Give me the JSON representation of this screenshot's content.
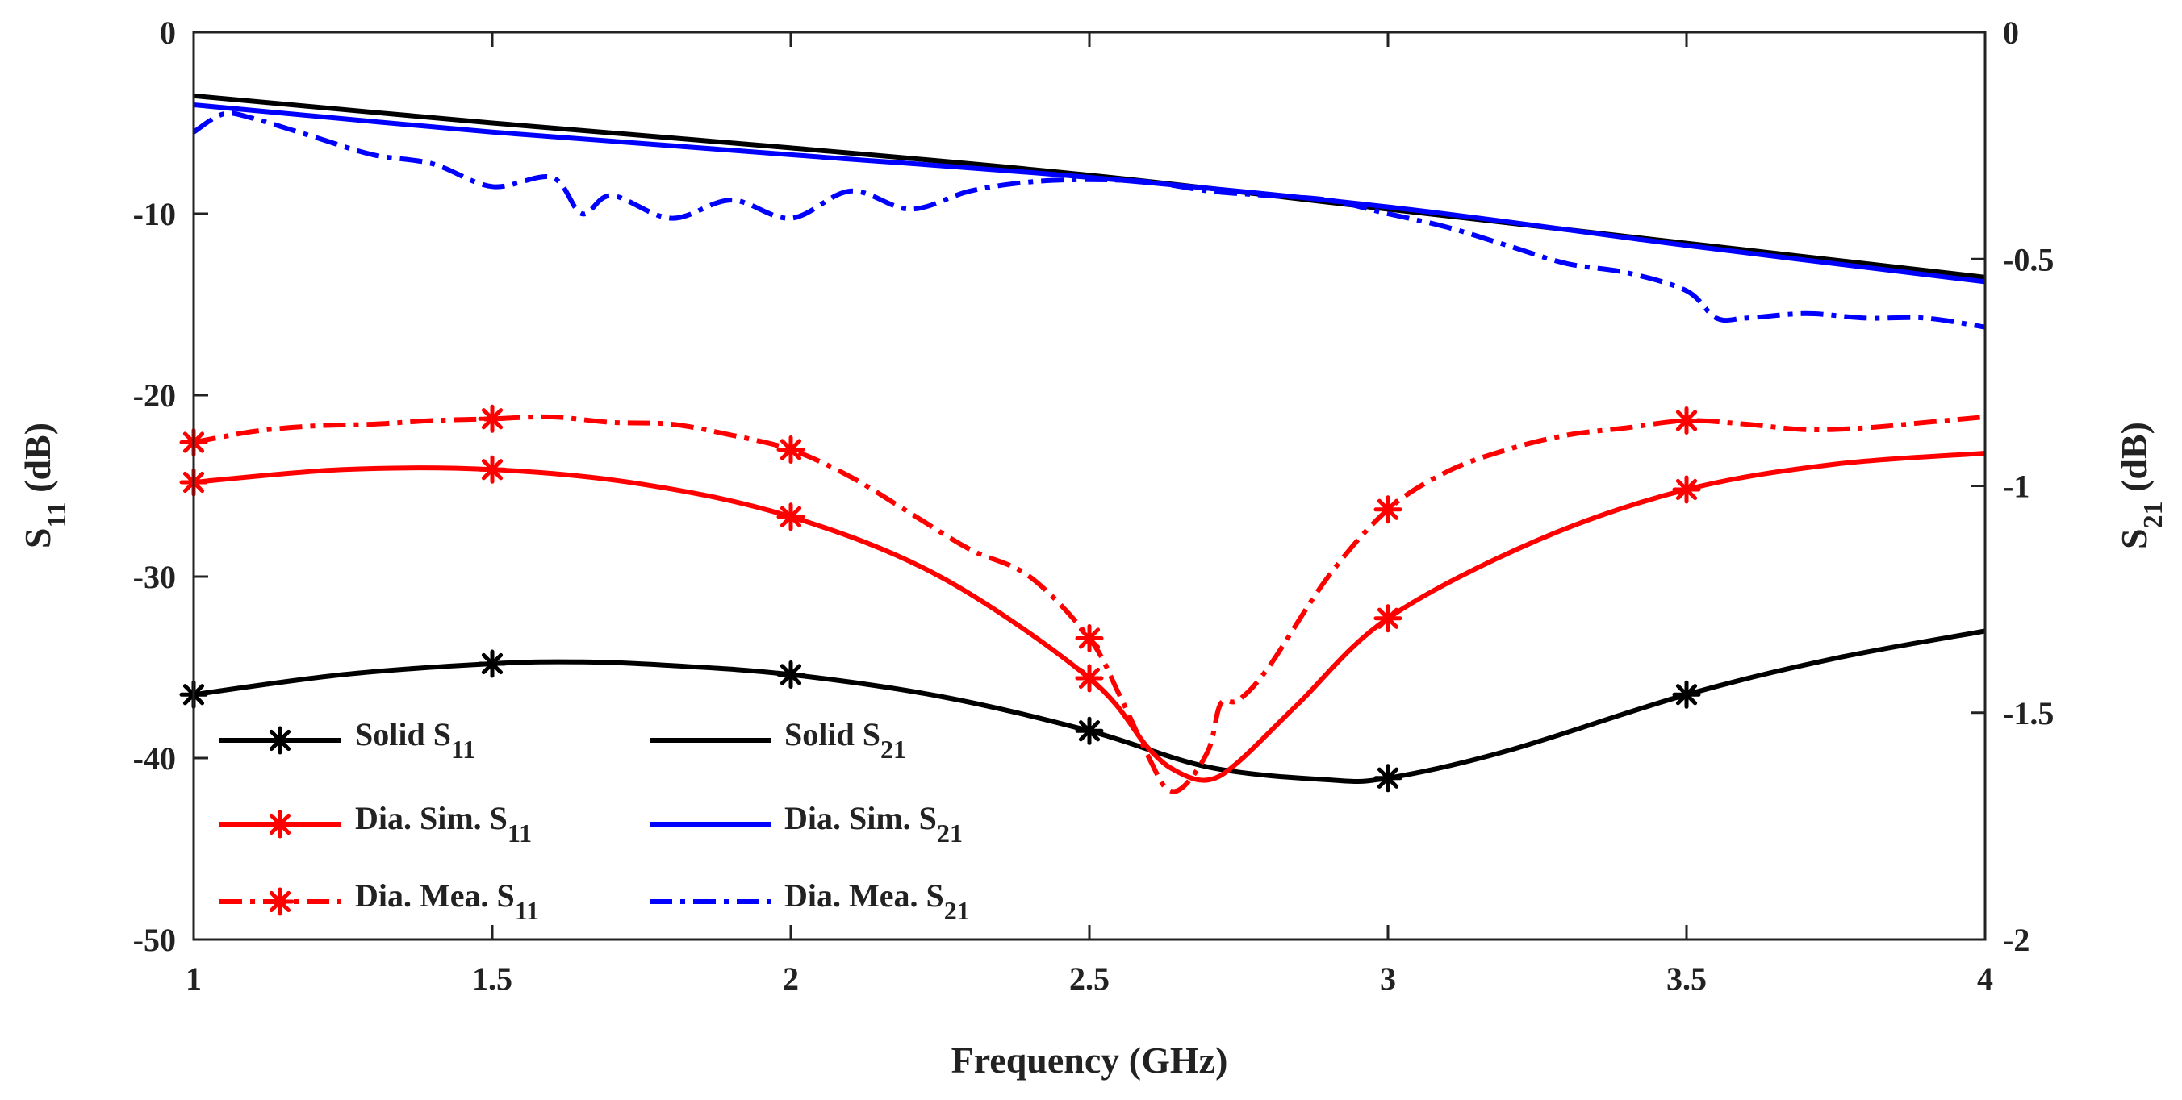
{
  "chart_data": {
    "type": "line",
    "xlabel": "Frequency (GHz)",
    "ylabel_left": {
      "main": "S",
      "sub": "11",
      "suffix": " (dB)"
    },
    "ylabel_right": {
      "main": "S",
      "sub": "21",
      "suffix": " (dB)"
    },
    "xlim": [
      1,
      4
    ],
    "ylim_left": [
      -50,
      0
    ],
    "ylim_right": [
      -2,
      0
    ],
    "x_ticks": [
      1,
      1.5,
      2,
      2.5,
      3,
      3.5,
      4
    ],
    "x_tick_labels": [
      "1",
      "1.5",
      "2",
      "2.5",
      "3",
      "3.5",
      "4"
    ],
    "y_left_ticks": [
      0,
      -10,
      -20,
      -30,
      -40,
      -50
    ],
    "y_left_tick_labels": [
      "0",
      "-10",
      "-20",
      "-30",
      "-40",
      "-50"
    ],
    "y_right_ticks": [
      0,
      -0.5,
      -1,
      -1.5,
      -2
    ],
    "y_right_tick_labels": [
      "0",
      "-0.5",
      "-1",
      "-1.5",
      "-2"
    ],
    "grid": false,
    "series": [
      {
        "name": "Solid S11",
        "label_main": "Solid S",
        "label_sub": "11",
        "axis": "left",
        "color": "#000000",
        "dash": "solid",
        "marker": "asterisk",
        "x": [
          1.0,
          1.25,
          1.5,
          1.65,
          1.8,
          2.0,
          2.25,
          2.5,
          2.7,
          2.9,
          3.0,
          3.2,
          3.5,
          3.75,
          4.0
        ],
        "y": [
          -36.5,
          -35.4,
          -34.8,
          -34.7,
          -34.9,
          -35.4,
          -36.6,
          -38.5,
          -40.5,
          -41.2,
          -41.1,
          -39.6,
          -36.5,
          -34.5,
          -33.0
        ],
        "marker_x": [
          1.0,
          1.5,
          2.0,
          2.5,
          3.0,
          3.5
        ],
        "marker_y": [
          -36.5,
          -34.8,
          -35.4,
          -38.5,
          -41.1,
          -36.5
        ]
      },
      {
        "name": "Dia. Sim. S11",
        "label_main": "Dia. Sim. S",
        "label_sub": "11",
        "axis": "left",
        "color": "#ff0000",
        "dash": "solid",
        "marker": "asterisk",
        "x": [
          1.0,
          1.25,
          1.5,
          1.75,
          2.0,
          2.25,
          2.5,
          2.6,
          2.65,
          2.7,
          2.75,
          2.85,
          3.0,
          3.25,
          3.5,
          3.75,
          4.0
        ],
        "y": [
          -24.8,
          -24.1,
          -24.1,
          -24.9,
          -26.7,
          -30.0,
          -35.6,
          -39.5,
          -40.8,
          -41.2,
          -40.2,
          -37.0,
          -32.3,
          -28.0,
          -25.2,
          -23.8,
          -23.2
        ],
        "marker_x": [
          1.0,
          1.5,
          2.0,
          2.5,
          3.0,
          3.5
        ],
        "marker_y": [
          -24.8,
          -24.1,
          -26.7,
          -35.6,
          -32.3,
          -25.2
        ]
      },
      {
        "name": "Dia. Mea. S11",
        "label_main": "Dia. Mea. S",
        "label_sub": "11",
        "axis": "left",
        "color": "#ff0000",
        "dash": "dashdot",
        "marker": "asterisk",
        "x": [
          1.0,
          1.1,
          1.2,
          1.3,
          1.4,
          1.5,
          1.6,
          1.7,
          1.8,
          1.9,
          2.0,
          2.1,
          2.2,
          2.3,
          2.4,
          2.5,
          2.55,
          2.6,
          2.63,
          2.66,
          2.7,
          2.72,
          2.75,
          2.8,
          2.9,
          3.0,
          3.1,
          3.2,
          3.3,
          3.4,
          3.5,
          3.6,
          3.7,
          3.8,
          3.9,
          4.0
        ],
        "y": [
          -22.6,
          -22.0,
          -21.7,
          -21.6,
          -21.4,
          -21.3,
          -21.2,
          -21.5,
          -21.6,
          -22.2,
          -23.0,
          -24.5,
          -26.5,
          -28.5,
          -30.0,
          -33.4,
          -36.5,
          -40.0,
          -41.7,
          -41.5,
          -39.5,
          -37.0,
          -36.8,
          -35.0,
          -30.0,
          -26.3,
          -24.2,
          -23.0,
          -22.2,
          -21.8,
          -21.4,
          -21.6,
          -21.9,
          -21.8,
          -21.5,
          -21.2
        ],
        "marker_x": [
          1.0,
          1.5,
          2.0,
          2.5,
          3.0,
          3.5
        ],
        "marker_y": [
          -22.6,
          -21.3,
          -23.0,
          -33.4,
          -26.3,
          -21.4
        ]
      },
      {
        "name": "Solid S21",
        "label_main": "Solid S",
        "label_sub": "21",
        "axis": "right",
        "color": "#000000",
        "dash": "solid",
        "marker": "none",
        "x": [
          1.0,
          1.5,
          2.0,
          2.5,
          3.0,
          3.5,
          4.0
        ],
        "y": [
          -0.14,
          -0.2,
          -0.255,
          -0.315,
          -0.39,
          -0.465,
          -0.54
        ]
      },
      {
        "name": "Dia. Sim. S21",
        "label_main": "Dia. Sim. S",
        "label_sub": "21",
        "axis": "right",
        "color": "#0000ff",
        "dash": "solid",
        "marker": "none",
        "x": [
          1.0,
          1.5,
          2.0,
          2.5,
          3.0,
          3.5,
          4.0
        ],
        "y": [
          -0.16,
          -0.22,
          -0.27,
          -0.32,
          -0.385,
          -0.47,
          -0.55
        ]
      },
      {
        "name": "Dia. Mea. S21",
        "label_main": "Dia. Mea. S",
        "label_sub": "21",
        "axis": "right",
        "color": "#0000ff",
        "dash": "dashdot",
        "marker": "none",
        "x": [
          1.0,
          1.05,
          1.1,
          1.2,
          1.3,
          1.4,
          1.5,
          1.6,
          1.65,
          1.7,
          1.8,
          1.9,
          2.0,
          2.1,
          2.2,
          2.3,
          2.4,
          2.5,
          2.6,
          2.7,
          2.8,
          2.9,
          3.0,
          3.1,
          3.2,
          3.3,
          3.4,
          3.5,
          3.55,
          3.6,
          3.7,
          3.8,
          3.9,
          4.0
        ],
        "y": [
          -0.22,
          -0.18,
          -0.19,
          -0.23,
          -0.27,
          -0.29,
          -0.34,
          -0.32,
          -0.4,
          -0.36,
          -0.41,
          -0.37,
          -0.41,
          -0.35,
          -0.39,
          -0.35,
          -0.33,
          -0.325,
          -0.33,
          -0.35,
          -0.36,
          -0.37,
          -0.4,
          -0.43,
          -0.47,
          -0.51,
          -0.53,
          -0.57,
          -0.63,
          -0.63,
          -0.62,
          -0.63,
          -0.63,
          -0.65
        ]
      }
    ]
  }
}
